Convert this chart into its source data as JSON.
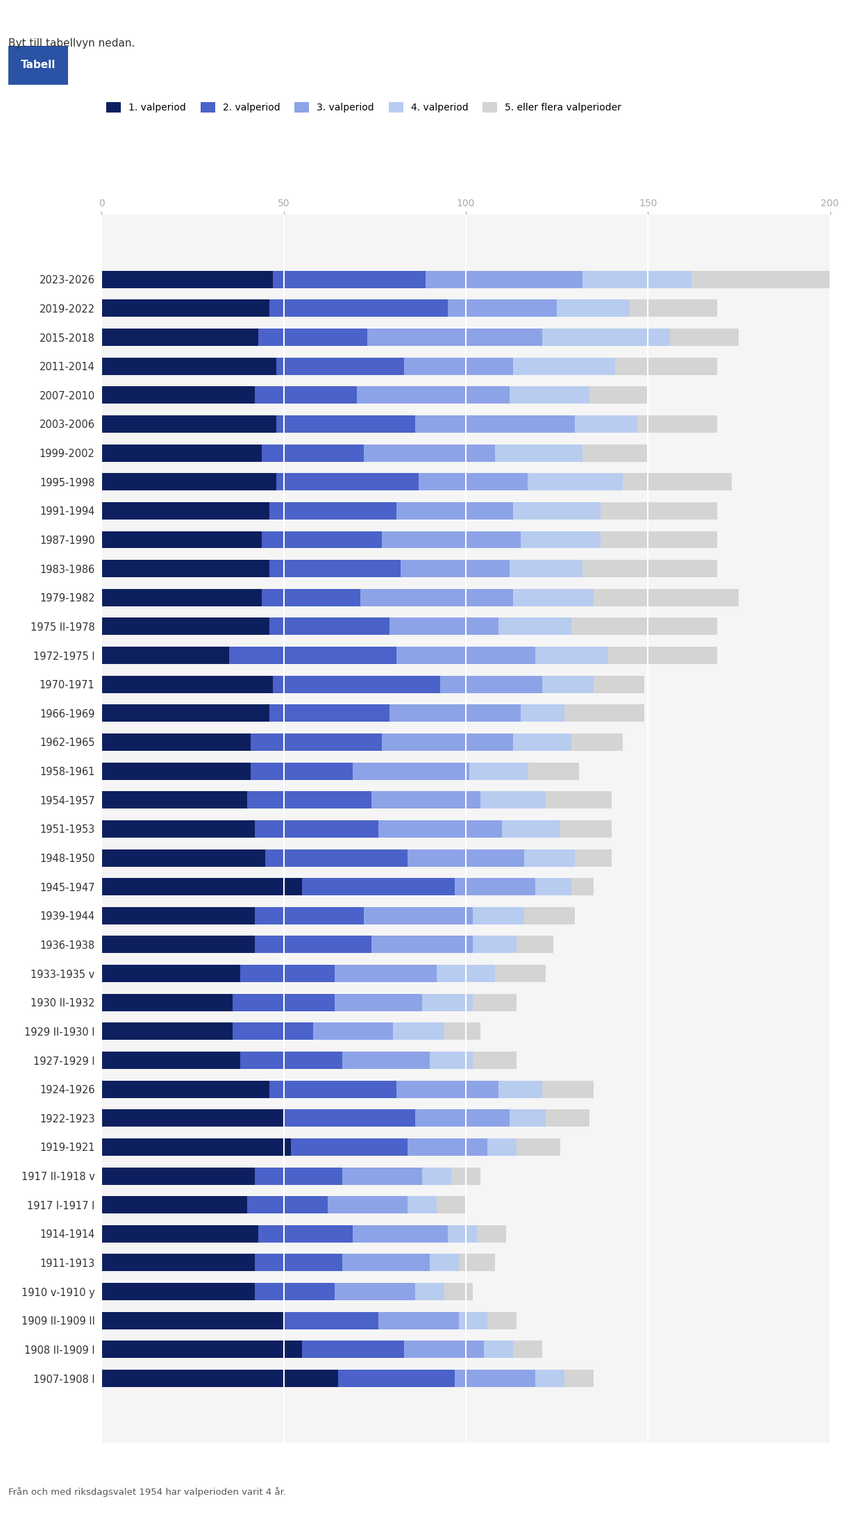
{
  "categories": [
    "2023-2026",
    "2019-2022",
    "2015-2018",
    "2011-2014",
    "2007-2010",
    "2003-2006",
    "1999-2002",
    "1995-1998",
    "1991-1994",
    "1987-1990",
    "1983-1986",
    "1979-1982",
    "1975 II-1978",
    "1972-1975 I",
    "1970-1971",
    "1966-1969",
    "1962-1965",
    "1958-1961",
    "1954-1957",
    "1951-1953",
    "1948-1950",
    "1945-1947",
    "1939-1944",
    "1936-1938",
    "1933-1935 v",
    "1930 II-1932",
    "1929 II-1930 I",
    "1927-1929 I",
    "1924-1926",
    "1922-1923",
    "1919-1921",
    "1917 II-1918 v",
    "1917 I-1917 I",
    "1914-1914",
    "1911-1913",
    "1910 v-1910 y",
    "1909 II-1909 II",
    "1908 II-1909 I",
    "1907-1908 I"
  ],
  "v1": [
    47,
    46,
    43,
    48,
    42,
    48,
    44,
    48,
    46,
    44,
    46,
    44,
    46,
    35,
    47,
    46,
    41,
    41,
    40,
    42,
    45,
    55,
    42,
    42,
    38,
    36,
    36,
    38,
    46,
    50,
    52,
    42,
    40,
    43,
    42,
    42,
    50,
    55,
    65
  ],
  "v2": [
    42,
    49,
    30,
    35,
    28,
    38,
    28,
    39,
    35,
    33,
    36,
    27,
    33,
    46,
    46,
    33,
    36,
    28,
    34,
    34,
    39,
    42,
    30,
    32,
    26,
    28,
    22,
    28,
    35,
    36,
    32,
    24,
    22,
    26,
    24,
    22,
    26,
    28,
    32
  ],
  "v3": [
    43,
    30,
    48,
    30,
    42,
    44,
    36,
    30,
    32,
    38,
    30,
    42,
    30,
    38,
    28,
    36,
    36,
    32,
    30,
    34,
    32,
    22,
    30,
    28,
    28,
    24,
    22,
    24,
    28,
    26,
    22,
    22,
    22,
    26,
    24,
    22,
    22,
    22,
    22
  ],
  "v4": [
    30,
    20,
    35,
    28,
    22,
    17,
    24,
    26,
    24,
    22,
    20,
    22,
    20,
    20,
    14,
    12,
    16,
    16,
    18,
    16,
    14,
    10,
    14,
    12,
    16,
    14,
    14,
    12,
    12,
    10,
    8,
    8,
    8,
    8,
    8,
    8,
    8,
    8,
    8
  ],
  "v5": [
    38,
    24,
    19,
    28,
    16,
    22,
    18,
    30,
    32,
    32,
    37,
    40,
    40,
    30,
    14,
    22,
    14,
    14,
    18,
    14,
    10,
    6,
    14,
    10,
    14,
    12,
    10,
    12,
    14,
    12,
    12,
    8,
    8,
    8,
    10,
    8,
    8,
    8,
    8
  ],
  "colors": [
    "#0d1f5e",
    "#4a62c9",
    "#8da3e8",
    "#b8ccf0",
    "#d4d4d4"
  ],
  "legend_labels": [
    "1. valperiod",
    "2. valperiod",
    "3. valperiod",
    "4. valperiod",
    "5. eller flera valperioder"
  ],
  "xlim": [
    0,
    200
  ],
  "xticks": [
    0,
    50,
    100,
    150,
    200
  ],
  "footer": "Från och med riksdagsvalet 1954 har valperioden varit 4 år.",
  "header": "Byt till tabellvyn nedan.",
  "button_text": "Tabell",
  "button_color": "#2a52a5"
}
